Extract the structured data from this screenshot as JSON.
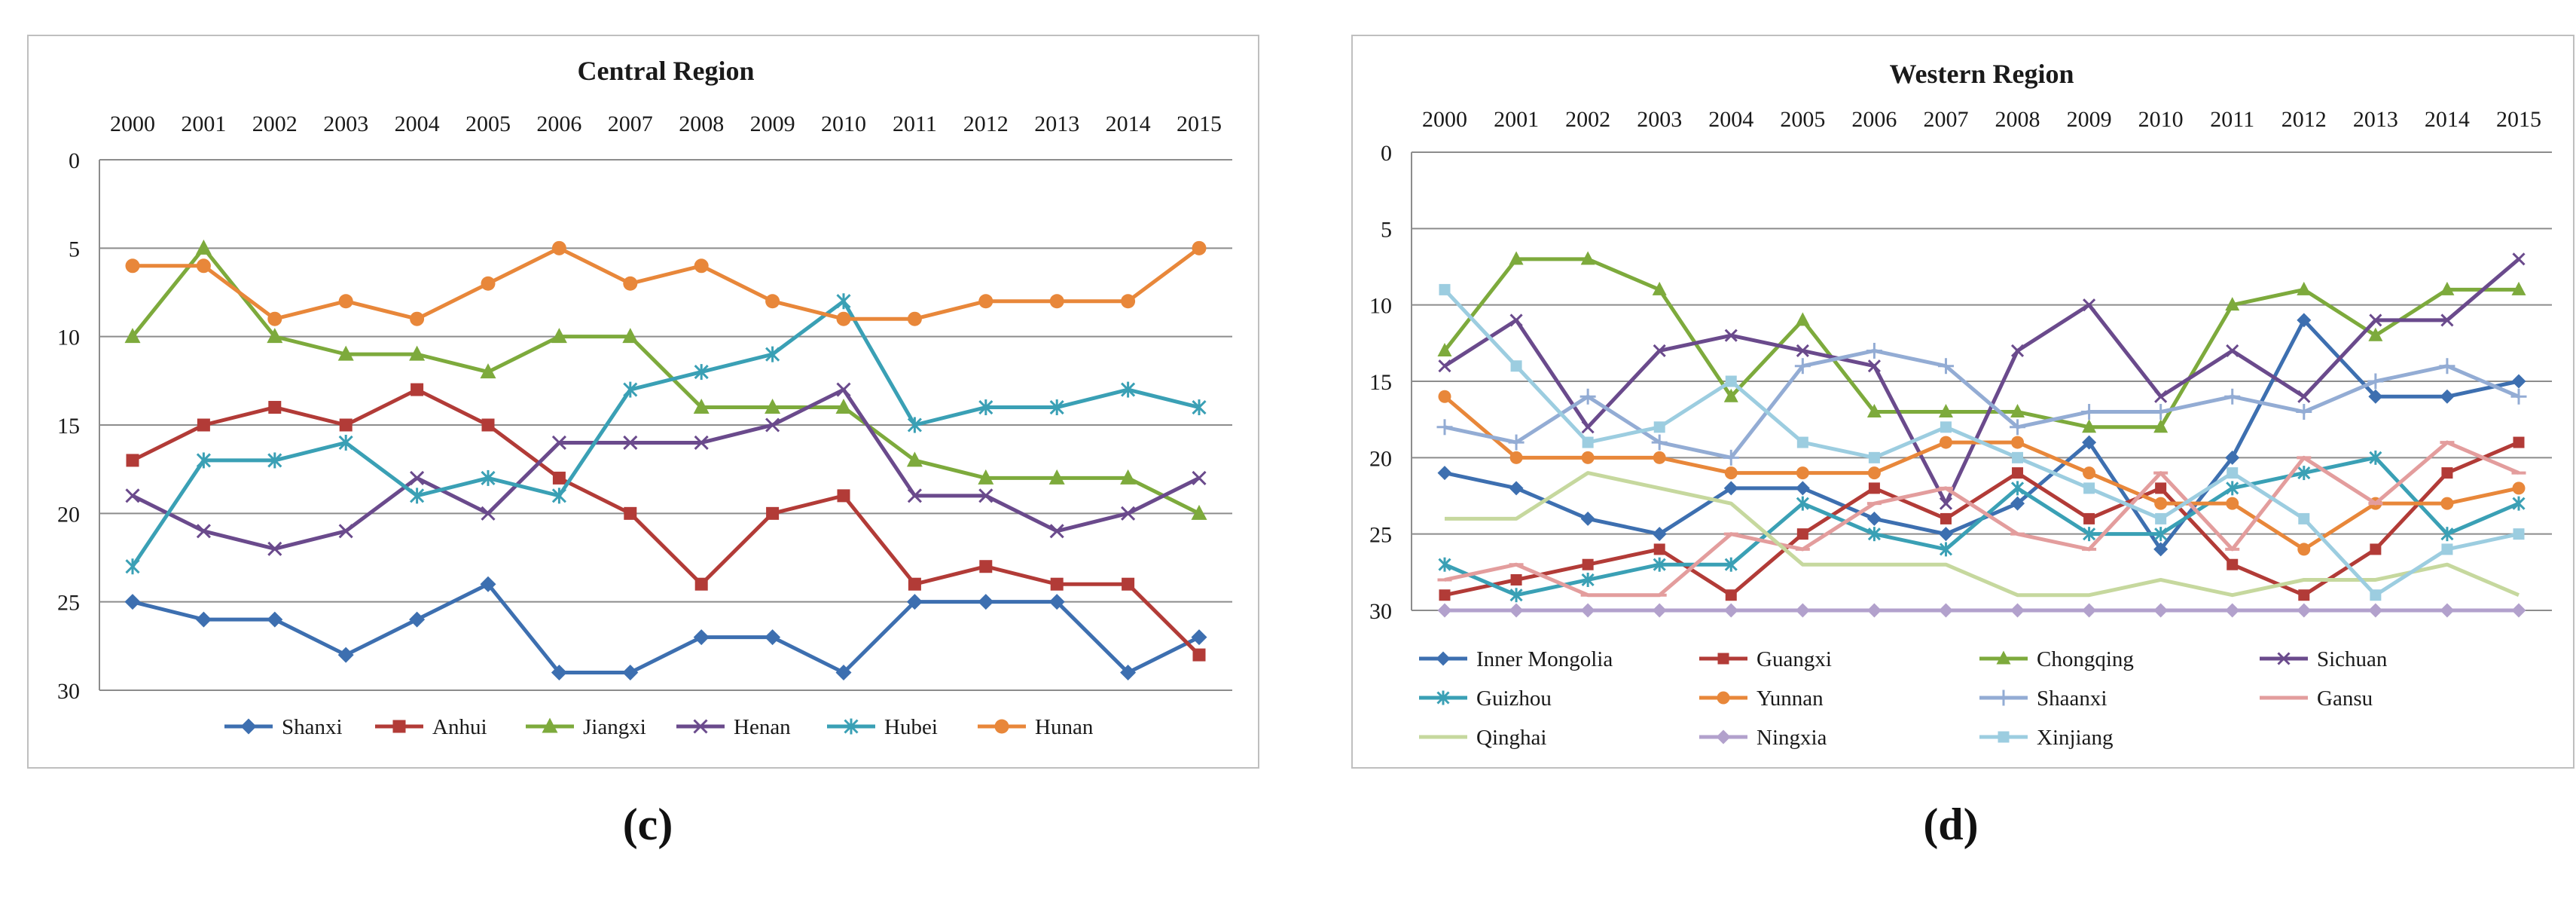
{
  "captions": {
    "c": "(c)",
    "d": "(d)"
  },
  "chart_data": [
    {
      "type": "line",
      "title": "Central Region",
      "x": [
        "2000",
        "2001",
        "2002",
        "2003",
        "2004",
        "2005",
        "2006",
        "2007",
        "2008",
        "2009",
        "2010",
        "2011",
        "2012",
        "2013",
        "2014",
        "2015"
      ],
      "y_ticks": [
        "0",
        "5",
        "10",
        "15",
        "20",
        "25",
        "30"
      ],
      "ylim": [
        0,
        30
      ],
      "y_reversed": true,
      "x_axis_position": "top",
      "grid": true,
      "legend": "bottom",
      "series": [
        {
          "name": "Shanxi",
          "color": "#3d6fb0",
          "marker": "diamond",
          "values": [
            25,
            26,
            26,
            28,
            26,
            24,
            29,
            29,
            27,
            27,
            29,
            25,
            25,
            25,
            29,
            27
          ]
        },
        {
          "name": "Anhui",
          "color": "#b23b37",
          "marker": "square",
          "values": [
            17,
            15,
            14,
            15,
            13,
            15,
            18,
            20,
            24,
            20,
            19,
            24,
            23,
            24,
            24,
            28
          ]
        },
        {
          "name": "Jiangxi",
          "color": "#7daa3c",
          "marker": "triangle",
          "values": [
            10,
            5,
            10,
            11,
            11,
            12,
            10,
            10,
            14,
            14,
            14,
            17,
            18,
            18,
            18,
            20
          ]
        },
        {
          "name": "Henan",
          "color": "#6a4a8c",
          "marker": "x",
          "values": [
            19,
            21,
            22,
            21,
            18,
            20,
            16,
            16,
            16,
            15,
            13,
            19,
            19,
            21,
            20,
            18
          ]
        },
        {
          "name": "Hubei",
          "color": "#3aa0b5",
          "marker": "star",
          "values": [
            23,
            17,
            17,
            16,
            19,
            18,
            19,
            13,
            12,
            11,
            8,
            15,
            14,
            14,
            13,
            14
          ]
        },
        {
          "name": "Hunan",
          "color": "#e8873a",
          "marker": "circle",
          "values": [
            6,
            6,
            9,
            8,
            9,
            7,
            5,
            7,
            6,
            8,
            9,
            9,
            8,
            8,
            8,
            5
          ]
        }
      ]
    },
    {
      "type": "line",
      "title": "Western Region",
      "x": [
        "2000",
        "2001",
        "2002",
        "2003",
        "2004",
        "2005",
        "2006",
        "2007",
        "2008",
        "2009",
        "2010",
        "2011",
        "2012",
        "2013",
        "2014",
        "2015"
      ],
      "y_ticks": [
        "0",
        "5",
        "10",
        "15",
        "20",
        "25",
        "30"
      ],
      "ylim": [
        0,
        30
      ],
      "y_reversed": true,
      "x_axis_position": "top",
      "grid": true,
      "legend": "bottom",
      "series": [
        {
          "name": "Inner Mongolia",
          "color": "#3d6fb0",
          "marker": "diamond",
          "values": [
            21,
            22,
            24,
            25,
            22,
            22,
            24,
            25,
            23,
            19,
            26,
            20,
            11,
            16,
            16,
            15
          ]
        },
        {
          "name": "Guangxi",
          "color": "#b23b37",
          "marker": "square",
          "values": [
            29,
            28,
            27,
            26,
            29,
            25,
            22,
            24,
            21,
            24,
            22,
            27,
            29,
            26,
            21,
            19
          ]
        },
        {
          "name": "Chongqing",
          "color": "#7daa3c",
          "marker": "triangle",
          "values": [
            13,
            7,
            7,
            9,
            16,
            11,
            17,
            17,
            17,
            18,
            18,
            10,
            9,
            12,
            9,
            9
          ]
        },
        {
          "name": "Sichuan",
          "color": "#6a4a8c",
          "marker": "x",
          "values": [
            14,
            11,
            18,
            13,
            12,
            13,
            14,
            23,
            13,
            10,
            16,
            13,
            16,
            11,
            11,
            7
          ]
        },
        {
          "name": "Guizhou",
          "color": "#3aa0b5",
          "marker": "star",
          "values": [
            27,
            29,
            28,
            27,
            27,
            23,
            25,
            26,
            22,
            25,
            25,
            22,
            21,
            20,
            25,
            23
          ]
        },
        {
          "name": "Yunnan",
          "color": "#e8873a",
          "marker": "circle",
          "values": [
            16,
            20,
            20,
            20,
            21,
            21,
            21,
            19,
            19,
            21,
            23,
            23,
            26,
            23,
            23,
            22
          ]
        },
        {
          "name": "Shaanxi",
          "color": "#93acd4",
          "marker": "plus",
          "values": [
            18,
            19,
            16,
            19,
            20,
            14,
            13,
            14,
            18,
            17,
            17,
            16,
            17,
            15,
            14,
            16
          ]
        },
        {
          "name": "Gansu",
          "color": "#e39d9d",
          "marker": "dash",
          "values": [
            28,
            27,
            29,
            29,
            25,
            26,
            23,
            22,
            25,
            26,
            21,
            26,
            20,
            23,
            19,
            21
          ]
        },
        {
          "name": "Qinghai",
          "color": "#c6d89e",
          "marker": "none",
          "values": [
            24,
            24,
            21,
            22,
            23,
            27,
            27,
            27,
            29,
            29,
            28,
            29,
            28,
            28,
            27,
            29
          ]
        },
        {
          "name": "Ningxia",
          "color": "#b2a1cc",
          "marker": "diamond",
          "values": [
            30,
            30,
            30,
            30,
            30,
            30,
            30,
            30,
            30,
            30,
            30,
            30,
            30,
            30,
            30,
            30
          ]
        },
        {
          "name": "Xinjiang",
          "color": "#9ccde0",
          "marker": "square",
          "values": [
            9,
            14,
            19,
            18,
            15,
            19,
            20,
            18,
            20,
            22,
            24,
            21,
            24,
            29,
            26,
            25
          ]
        }
      ]
    }
  ]
}
